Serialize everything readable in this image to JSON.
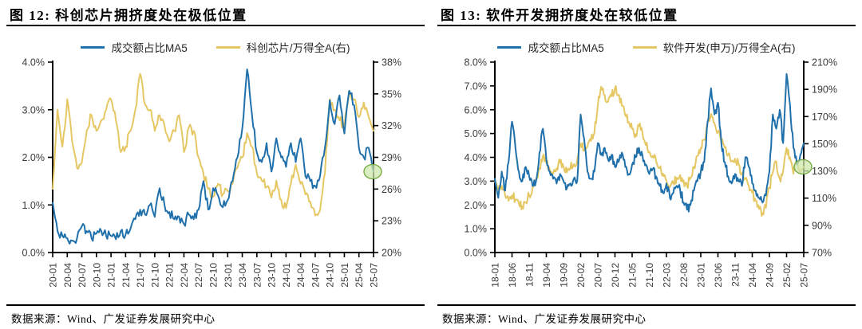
{
  "source_note": "数据来源：Wind、广发证券发展研究中心",
  "chart_data": [
    {
      "type": "line",
      "title": "图 12: 科创芯片拥挤度处在极低位置",
      "x_frequency": "monthly",
      "x_range": [
        "20-01",
        "25-07"
      ],
      "x_tick_labels": [
        "20-01",
        "20-04",
        "20-07",
        "20-10",
        "21-01",
        "21-04",
        "21-07",
        "21-10",
        "22-01",
        "22-04",
        "22-07",
        "22-10",
        "23-01",
        "23-04",
        "23-07",
        "23-10",
        "24-01",
        "24-04",
        "24-07",
        "24-10",
        "25-01",
        "25-04",
        "25-07"
      ],
      "left_axis": {
        "min": 0,
        "max": 4,
        "ticks": [
          "4.0%",
          "3.0%",
          "2.0%",
          "1.0%",
          "0.0%"
        ]
      },
      "right_axis": {
        "min": 20,
        "max": 38,
        "ticks": [
          "38%",
          "35%",
          "32%",
          "29%",
          "26%",
          "23%",
          "20%"
        ]
      },
      "grid": false,
      "legend_position": "top",
      "series": [
        {
          "name": "成交额占比MA5",
          "axis": "left",
          "color": "#2070ab",
          "values": [
            1.05,
            0.45,
            0.35,
            0.3,
            0.25,
            0.3,
            0.55,
            0.45,
            0.3,
            0.4,
            0.45,
            0.35,
            0.35,
            0.28,
            0.45,
            0.38,
            0.5,
            0.7,
            0.9,
            0.8,
            1.0,
            0.75,
            1.35,
            1.0,
            0.85,
            0.7,
            0.75,
            0.6,
            0.8,
            0.7,
            0.9,
            1.5,
            0.9,
            1.35,
            1.2,
            0.95,
            1.1,
            1.5,
            2.0,
            2.6,
            3.85,
            2.9,
            2.1,
            1.9,
            2.3,
            1.7,
            2.4,
            2.0,
            1.8,
            2.3,
            1.9,
            2.4,
            1.6,
            1.5,
            1.4,
            1.6,
            2.2,
            3.2,
            2.7,
            3.3,
            2.5,
            3.4,
            3.1,
            2.2,
            2.0,
            2.2,
            1.7
          ]
        },
        {
          "name": "科创芯片/万得全A(右)",
          "axis": "right",
          "color": "#e5c763",
          "values": [
            26,
            33.5,
            30,
            34.5,
            30.5,
            28,
            28.5,
            31.5,
            33,
            31.5,
            32.5,
            33.5,
            34.5,
            32.5,
            29.5,
            30,
            31.5,
            33.5,
            36.9,
            34,
            33.5,
            31.5,
            33,
            32,
            30.5,
            31.5,
            33,
            29.5,
            31.8,
            31.5,
            29,
            27.5,
            26,
            25.3,
            26.5,
            25.5,
            25.8,
            26.5,
            28,
            29,
            31.3,
            30,
            27.5,
            26.8,
            26.2,
            25.2,
            26.8,
            25,
            24.2,
            26.5,
            28.3,
            26.5,
            25.5,
            24.8,
            23.5,
            24,
            27.5,
            34.5,
            33.5,
            32.5,
            32,
            35,
            34.5,
            32.8,
            34.2,
            32.8,
            31.5
          ]
        }
      ],
      "highlight": {
        "on_series": 0,
        "at": "last-point",
        "fill": "#cfe8ac",
        "stroke": "#78ab47"
      }
    },
    {
      "type": "line",
      "title": "图 13: 软件开发拥挤度处在较低位置",
      "x_frequency": "monthly",
      "x_range": [
        "18-01",
        "25-07"
      ],
      "x_tick_labels": [
        "18-01",
        "18-06",
        "18-11",
        "19-04",
        "19-09",
        "20-02",
        "20-07",
        "20-12",
        "21-05",
        "21-10",
        "22-03",
        "22-08",
        "23-01",
        "23-06",
        "23-11",
        "24-04",
        "24-09",
        "25-02",
        "25-07"
      ],
      "left_axis": {
        "min": 0,
        "max": 8,
        "ticks": [
          "8.0%",
          "7.0%",
          "6.0%",
          "5.0%",
          "4.0%",
          "3.0%",
          "2.0%",
          "1.0%",
          "0.0%"
        ]
      },
      "right_axis": {
        "min": 70,
        "max": 210,
        "ticks": [
          "210%",
          "190%",
          "170%",
          "150%",
          "130%",
          "110%",
          "90%",
          "70%"
        ]
      },
      "grid": false,
      "legend_position": "top",
      "series": [
        {
          "name": "成交额占比MA5",
          "axis": "left",
          "color": "#2070ab",
          "values": [
            3.1,
            2.3,
            3.4,
            2.6,
            3.8,
            5.5,
            4.4,
            3.4,
            3.0,
            3.6,
            3.2,
            2.8,
            3.0,
            4.2,
            5.2,
            3.9,
            3.4,
            3.1,
            2.9,
            3.3,
            3.0,
            2.7,
            2.9,
            3.1,
            3.0,
            5.8,
            4.8,
            3.4,
            3.1,
            3.4,
            4.6,
            4.1,
            4.4,
            3.9,
            4.1,
            3.6,
            3.8,
            4.2,
            3.6,
            3.3,
            3.7,
            4.0,
            4.4,
            4.1,
            3.7,
            3.3,
            3.5,
            3.2,
            2.8,
            2.5,
            2.9,
            2.3,
            2.5,
            2.8,
            2.6,
            2.1,
            1.8,
            2.0,
            2.6,
            3.0,
            3.4,
            3.8,
            5.5,
            6.9,
            5.8,
            6.3,
            4.6,
            3.8,
            3.2,
            2.9,
            3.3,
            3.0,
            2.8,
            4.0,
            3.6,
            2.9,
            2.6,
            2.3,
            2.1,
            2.4,
            3.4,
            5.8,
            5.2,
            6.0,
            4.6,
            7.5,
            6.2,
            4.4,
            3.7,
            4.1,
            4.6
          ]
        },
        {
          "name": "软件开发(申万)/万得全A(右)",
          "axis": "right",
          "color": "#e5c763",
          "values": [
            122,
            116,
            119,
            112,
            108,
            112,
            109,
            106,
            104,
            107,
            112,
            118,
            124,
            132,
            141,
            136,
            131,
            128,
            132,
            136,
            133,
            129,
            132,
            135,
            138,
            150,
            145,
            148,
            152,
            158,
            178,
            192,
            186,
            181,
            185,
            191,
            186,
            178,
            171,
            166,
            161,
            157,
            163,
            158,
            149,
            144,
            141,
            137,
            132,
            128,
            123,
            118,
            121,
            125,
            127,
            123,
            119,
            125,
            133,
            141,
            147,
            153,
            166,
            172,
            165,
            159,
            152,
            147,
            142,
            137,
            139,
            135,
            128,
            124,
            119,
            114,
            108,
            102,
            99,
            103,
            118,
            129,
            137,
            124,
            130,
            147,
            140,
            128,
            137,
            129,
            133
          ]
        }
      ],
      "highlight": {
        "on_series": 1,
        "at": "last-point",
        "fill": "#cfe8ac",
        "stroke": "#78ab47"
      }
    }
  ],
  "style": {
    "axis_color": "#000000",
    "tick_label_color": "#3a3a3a"
  }
}
